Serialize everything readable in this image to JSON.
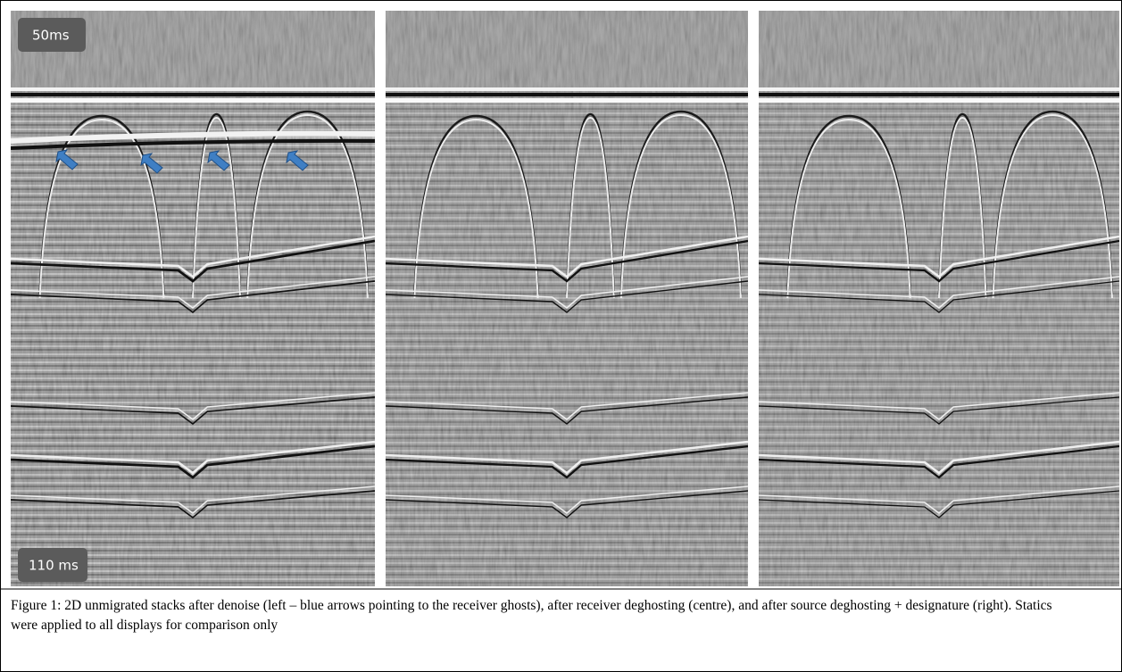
{
  "figure": {
    "labels": {
      "top": "50ms",
      "bottom": "110 ms"
    },
    "caption": "Figure 1: 2D unmigrated stacks after denoise (left – blue arrows pointing to the receiver ghosts), after receiver deghosting (centre), and after source deghosting + designature (right). Statics were applied to all displays for comparison only"
  }
}
